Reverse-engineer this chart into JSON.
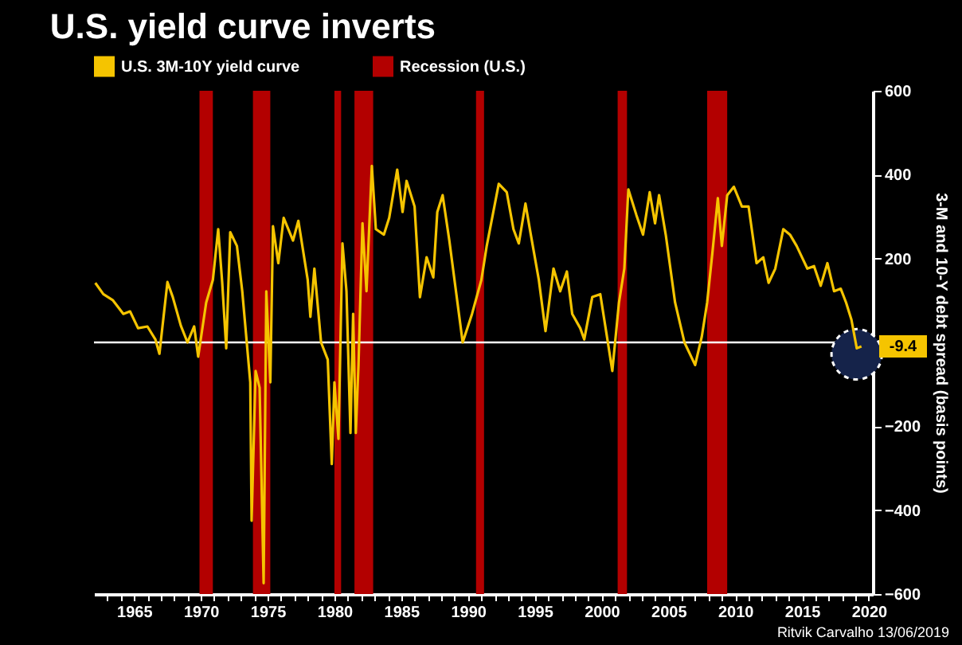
{
  "chart_data": {
    "type": "line",
    "title": "U.S. yield curve inverts",
    "ylabel": "3-M and 10-Y debt spread (basis points)",
    "legend": "top left",
    "xlim": [
      1962,
      2020.3
    ],
    "xticks": [
      {
        "value": 1963,
        "label": null
      },
      {
        "value": 1964,
        "label": null
      },
      1965,
      {
        "value": 1966,
        "label": null
      },
      {
        "value": 1967,
        "label": null
      },
      {
        "value": 1968,
        "label": null
      },
      {
        "value": 1969,
        "label": null
      },
      1970,
      {
        "value": 1971,
        "label": null
      },
      {
        "value": 1972,
        "label": null
      },
      {
        "value": 1973,
        "label": null
      },
      {
        "value": 1974,
        "label": null
      },
      1975,
      {
        "value": 1976,
        "label": null
      },
      {
        "value": 1977,
        "label": null
      },
      {
        "value": 1978,
        "label": null
      },
      {
        "value": 1979,
        "label": null
      },
      1980,
      {
        "value": 1981,
        "label": null
      },
      {
        "value": 1982,
        "label": null
      },
      {
        "value": 1983,
        "label": null
      },
      {
        "value": 1984,
        "label": null
      },
      1985,
      {
        "value": 1986,
        "label": null
      },
      {
        "value": 1987,
        "label": null
      },
      {
        "value": 1988,
        "label": null
      },
      {
        "value": 1989,
        "label": null
      },
      1990,
      {
        "value": 1991,
        "label": null
      },
      {
        "value": 1992,
        "label": null
      },
      {
        "value": 1993,
        "label": null
      },
      {
        "value": 1994,
        "label": null
      },
      1995,
      {
        "value": 1996,
        "label": null
      },
      {
        "value": 1997,
        "label": null
      },
      {
        "value": 1998,
        "label": null
      },
      {
        "value": 1999,
        "label": null
      },
      2000,
      {
        "value": 2001,
        "label": null
      },
      {
        "value": 2002,
        "label": null
      },
      {
        "value": 2003,
        "label": null
      },
      {
        "value": 2004,
        "label": null
      },
      2005,
      {
        "value": 2006,
        "label": null
      },
      {
        "value": 2007,
        "label": null
      },
      {
        "value": 2008,
        "label": null
      },
      {
        "value": 2009,
        "label": null
      },
      2010,
      {
        "value": 2011,
        "label": null
      },
      {
        "value": 2012,
        "label": null
      },
      {
        "value": 2013,
        "label": null
      },
      {
        "value": 2014,
        "label": null
      },
      2015,
      {
        "value": 2016,
        "label": null
      },
      {
        "value": 2017,
        "label": null
      },
      {
        "value": 2018,
        "label": null
      },
      {
        "value": 2019,
        "label": null
      },
      2020
    ],
    "ylim": [
      -600,
      600
    ],
    "yticks": [
      -600,
      -400,
      -200,
      200,
      400,
      600
    ],
    "series": [
      {
        "name": "U.S. 3M-10Y yield curve",
        "color": "#f5c400",
        "x": [
          1962.1,
          1962.7,
          1963.4,
          1964.2,
          1964.7,
          1965.3,
          1966.0,
          1966.6,
          1966.9,
          1967.5,
          1967.9,
          1968.5,
          1969.0,
          1969.5,
          1969.8,
          1970.4,
          1970.9,
          1971.3,
          1971.6,
          1971.9,
          1972.2,
          1972.7,
          1973.1,
          1973.7,
          1973.8,
          1974.1,
          1974.4,
          1974.7,
          1974.9,
          1975.2,
          1975.4,
          1975.8,
          1976.2,
          1976.9,
          1977.3,
          1978.0,
          1978.2,
          1978.5,
          1979.0,
          1979.5,
          1979.8,
          1980.0,
          1980.3,
          1980.6,
          1980.9,
          1981.2,
          1981.4,
          1981.6,
          1981.8,
          1982.1,
          1982.4,
          1982.8,
          1983.1,
          1983.7,
          1984.1,
          1984.7,
          1985.1,
          1985.4,
          1986.0,
          1986.4,
          1986.9,
          1987.4,
          1987.7,
          1988.1,
          1988.6,
          1989.6,
          1990.3,
          1991.0,
          1991.4,
          1992.3,
          1992.9,
          1993.4,
          1993.8,
          1994.3,
          1994.7,
          1995.3,
          1995.8,
          1996.4,
          1996.9,
          1997.4,
          1997.8,
          1998.4,
          1998.7,
          1999.3,
          1999.9,
          2000.4,
          2000.8,
          2001.3,
          2001.7,
          2002.0,
          2002.6,
          2003.1,
          2003.6,
          2004.0,
          2004.3,
          2004.8,
          2005.5,
          2006.2,
          2007.0,
          2007.5,
          2007.9,
          2008.3,
          2008.7,
          2009.0,
          2009.4,
          2009.9,
          2010.5,
          2011.0,
          2011.6,
          2012.1,
          2012.5,
          2013.0,
          2013.6,
          2014.1,
          2014.6,
          2015.0,
          2015.4,
          2015.9,
          2016.4,
          2016.9,
          2017.4,
          2017.9,
          2018.3,
          2018.7,
          2019.1,
          2019.45
        ],
        "values": [
          142,
          115,
          101,
          68,
          74,
          34,
          38,
          7,
          -27,
          144,
          108,
          40,
          0,
          38,
          -34,
          95,
          149,
          270,
          142,
          -14,
          263,
          230,
          122,
          -95,
          -425,
          -68,
          -108,
          -574,
          122,
          -95,
          277,
          189,
          297,
          243,
          290,
          149,
          61,
          176,
          0,
          -41,
          -290,
          -95,
          -230,
          236,
          122,
          -216,
          68,
          -216,
          -54,
          284,
          122,
          421,
          270,
          257,
          297,
          412,
          311,
          385,
          324,
          108,
          203,
          155,
          311,
          351,
          243,
          0,
          68,
          149,
          230,
          378,
          358,
          270,
          236,
          331,
          257,
          149,
          27,
          176,
          122,
          169,
          68,
          34,
          7,
          108,
          115,
          14,
          -68,
          95,
          176,
          365,
          304,
          257,
          358,
          284,
          351,
          257,
          95,
          0,
          -54,
          14,
          95,
          216,
          344,
          230,
          351,
          371,
          324,
          324,
          189,
          203,
          142,
          176,
          270,
          257,
          230,
          203,
          176,
          182,
          135,
          189,
          122,
          128,
          95,
          54,
          -14,
          -9.4
        ]
      }
    ],
    "bands": [
      {
        "axis": "x",
        "from": 1969.9,
        "to": 1970.9,
        "label": "Recession (U.S.)",
        "color": "#b30000"
      },
      {
        "axis": "x",
        "from": 1973.9,
        "to": 1975.2,
        "color": "#b30000"
      },
      {
        "axis": "x",
        "from": 1980.0,
        "to": 1980.5,
        "color": "#b30000"
      },
      {
        "axis": "x",
        "from": 1981.5,
        "to": 1982.9,
        "color": "#b30000"
      },
      {
        "axis": "x",
        "from": 1990.6,
        "to": 1991.2,
        "color": "#b30000"
      },
      {
        "axis": "x",
        "from": 2001.2,
        "to": 2001.9,
        "color": "#b30000"
      },
      {
        "axis": "x",
        "from": 2007.9,
        "to": 2009.4,
        "color": "#b30000"
      }
    ],
    "ref_lines": [
      {
        "axis": "y",
        "value": 0,
        "color": "#ffffff"
      }
    ],
    "annotations": [
      {
        "text": "-9.4",
        "x": 2019.45,
        "y": -9.4
      },
      "Ritvik Carvalho 13/06/2019"
    ]
  }
}
